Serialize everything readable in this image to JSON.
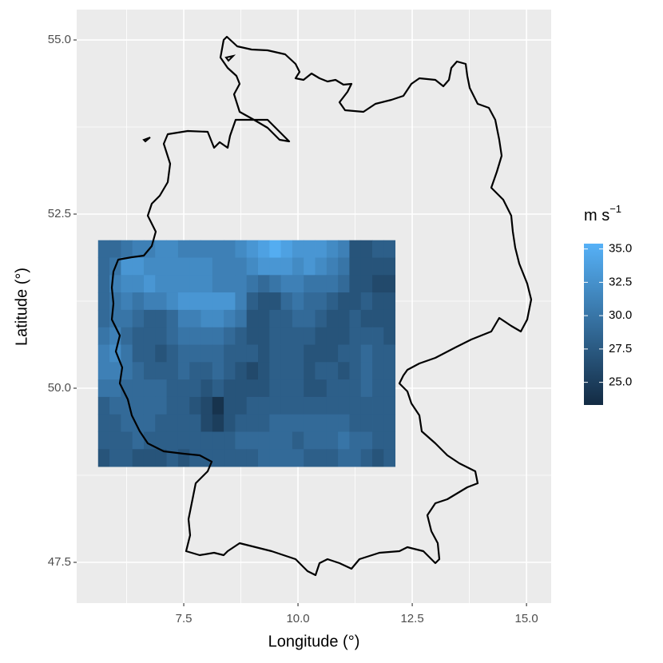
{
  "chart_data": {
    "type": "heatmap",
    "x_label": "Longitude (°)",
    "y_label": "Latitude (°)",
    "x": [
      5.75,
      6.0,
      6.25,
      6.5,
      6.75,
      7.0,
      7.25,
      7.5,
      7.75,
      8.0,
      8.25,
      8.5,
      8.75,
      9.0,
      9.25,
      9.5,
      9.75,
      10.0,
      10.25,
      10.5,
      10.75,
      11.0,
      11.25,
      11.5,
      11.75,
      12.0
    ],
    "y": [
      52.0,
      51.75,
      51.5,
      51.25,
      51.0,
      50.75,
      50.5,
      50.25,
      50.0,
      49.75,
      49.5,
      49.25,
      49.0
    ],
    "z": [
      [
        29,
        29,
        30,
        31,
        31,
        32,
        32,
        31,
        31,
        31,
        31,
        31,
        32,
        33,
        34,
        35,
        34,
        33,
        33,
        33,
        32,
        31,
        27,
        27,
        28,
        28
      ],
      [
        29,
        30,
        33,
        33,
        32,
        32,
        32,
        32,
        32,
        32,
        31,
        31,
        31,
        32,
        33,
        33,
        33,
        32,
        33,
        32,
        31,
        30,
        27,
        27,
        27,
        27
      ],
      [
        29,
        31,
        32,
        32,
        33,
        32,
        32,
        32,
        32,
        32,
        31,
        31,
        31,
        30,
        29,
        30,
        31,
        31,
        30,
        30,
        30,
        29,
        27,
        27,
        26,
        26
      ],
      [
        29,
        30,
        31,
        30,
        31,
        31,
        32,
        33,
        33,
        33,
        33,
        33,
        31,
        28,
        27,
        27,
        29,
        30,
        29,
        29,
        28,
        27,
        27,
        28,
        27,
        27
      ],
      [
        29,
        30,
        30,
        29,
        28,
        28,
        29,
        31,
        31,
        32,
        32,
        31,
        30,
        27,
        27,
        28,
        28,
        29,
        29,
        28,
        27,
        27,
        28,
        27,
        27,
        27
      ],
      [
        30,
        31,
        29,
        28,
        28,
        28,
        29,
        30,
        30,
        30,
        30,
        29,
        28,
        27,
        27,
        28,
        28,
        28,
        28,
        27,
        27,
        27,
        28,
        28,
        28,
        27
      ],
      [
        31,
        32,
        30,
        28,
        28,
        27,
        28,
        29,
        29,
        29,
        29,
        28,
        28,
        28,
        27,
        28,
        28,
        28,
        27,
        27,
        27,
        28,
        28,
        29,
        28,
        28
      ],
      [
        31,
        31,
        30,
        29,
        28,
        28,
        28,
        29,
        28,
        28,
        29,
        28,
        27,
        26,
        27,
        28,
        28,
        28,
        27,
        28,
        28,
        27,
        28,
        29,
        28,
        28
      ],
      [
        30,
        30,
        29,
        29,
        29,
        29,
        28,
        28,
        28,
        27,
        28,
        27,
        27,
        27,
        27,
        28,
        28,
        28,
        27,
        27,
        28,
        28,
        28,
        29,
        28,
        28
      ],
      [
        28,
        29,
        29,
        29,
        29,
        29,
        28,
        28,
        27,
        26,
        24,
        27,
        27,
        28,
        28,
        28,
        28,
        28,
        28,
        28,
        28,
        28,
        28,
        28,
        28,
        28
      ],
      [
        28,
        28,
        29,
        29,
        29,
        28,
        28,
        28,
        28,
        26,
        25,
        27,
        28,
        28,
        28,
        29,
        29,
        29,
        29,
        29,
        29,
        29,
        28,
        28,
        28,
        28
      ],
      [
        28,
        28,
        28,
        29,
        28,
        28,
        28,
        28,
        28,
        28,
        28,
        28,
        29,
        29,
        29,
        29,
        29,
        28,
        29,
        29,
        29,
        30,
        29,
        29,
        28,
        28
      ],
      [
        27,
        28,
        28,
        27,
        27,
        27,
        28,
        27,
        28,
        28,
        28,
        28,
        28,
        28,
        29,
        29,
        29,
        29,
        28,
        28,
        28,
        29,
        29,
        28,
        27,
        28
      ]
    ],
    "xlim": [
      5.157,
      15.54
    ],
    "ylim": [
      46.915,
      55.436
    ],
    "xticks": [
      7.5,
      {
        "value": 10.0,
        "label": "10.0"
      },
      12.5,
      {
        "value": 15.0,
        "label": "15.0"
      }
    ],
    "yticks": [
      47.5,
      {
        "value": 50.0,
        "label": "50.0"
      },
      52.5,
      {
        "value": 55.0,
        "label": "55.0"
      }
    ],
    "grid": true,
    "colorbar_title": "m s",
    "colorbar_title_exponent": "−1",
    "color_low": "#132B43",
    "color_high": "#56B1F7",
    "zlim": [
      23.3,
      35.4
    ],
    "colorbar_ticks": [
      {
        "value": 25.0,
        "label": "25.0"
      },
      27.5,
      {
        "value": 30.0,
        "label": "30.0"
      },
      32.5,
      {
        "value": 35.0,
        "label": "35.0"
      }
    ]
  }
}
